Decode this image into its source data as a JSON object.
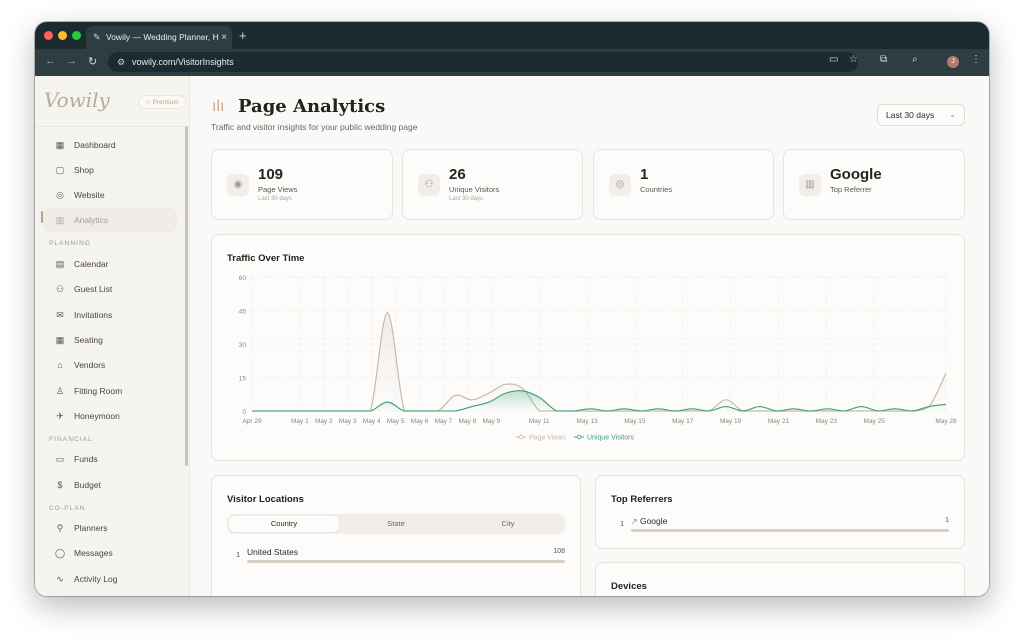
{
  "browser": {
    "tab_title": "Vowily — Wedding Planner, H",
    "tab_close": "×",
    "new_tab": "+",
    "url": "vowily.com/VisitorInsights",
    "profile_initial": "J"
  },
  "sidebar": {
    "logo": "Vowily",
    "premium": "☆ Premium",
    "items_top": [
      {
        "label": "Dashboard",
        "icon": "dashboard-icon"
      },
      {
        "label": "Shop",
        "icon": "shop-icon"
      },
      {
        "label": "Website",
        "icon": "globe-icon"
      },
      {
        "label": "Analytics",
        "icon": "bar-chart-icon"
      }
    ],
    "section_planning": "PLANNING",
    "items_planning": [
      {
        "label": "Calendar",
        "icon": "calendar-icon"
      },
      {
        "label": "Guest List",
        "icon": "guests-icon"
      },
      {
        "label": "Invitations",
        "icon": "mail-icon"
      },
      {
        "label": "Seating",
        "icon": "seating-icon"
      },
      {
        "label": "Vendors",
        "icon": "store-icon"
      },
      {
        "label": "Fitting Room",
        "icon": "dress-icon"
      },
      {
        "label": "Honeymoon",
        "icon": "plane-icon"
      }
    ],
    "section_financial": "FINANCIAL",
    "items_financial": [
      {
        "label": "Funds",
        "icon": "wallet-icon"
      },
      {
        "label": "Budget",
        "icon": "dollar-icon"
      }
    ],
    "section_coplan": "CO-PLAN",
    "items_coplan": [
      {
        "label": "Planners",
        "icon": "add-user-icon"
      },
      {
        "label": "Messages",
        "icon": "chat-icon"
      },
      {
        "label": "Activity Log",
        "icon": "activity-icon"
      }
    ]
  },
  "header": {
    "title": "Page Analytics",
    "subtitle": "Traffic and visitor insights for your public wedding page",
    "range": "Last 30 days"
  },
  "stats": [
    {
      "value": "109",
      "label": "Page Views",
      "note": "Last 30 days",
      "icon": "eye-icon"
    },
    {
      "value": "26",
      "label": "Unique Visitors",
      "note": "Last 30 days",
      "icon": "users-icon"
    },
    {
      "value": "1",
      "label": "Countries",
      "note": "",
      "icon": "globe-icon"
    },
    {
      "value": "Google",
      "label": "Top Referrer",
      "note": "",
      "icon": "bar-chart-icon"
    }
  ],
  "traffic": {
    "title": "Traffic Over Time",
    "legend_page_views": "Page Views",
    "legend_unique": "Unique Visitors"
  },
  "chart_data": {
    "type": "line",
    "title": "Traffic Over Time",
    "ylim": [
      0,
      60
    ],
    "yticks": [
      "0",
      "15",
      "30",
      "45",
      "60"
    ],
    "xtick_labels": [
      "Apr 29",
      "May 1",
      "May 2",
      "May 3",
      "May 4",
      "May 5",
      "May 6",
      "May 7",
      "May 8",
      "May 9",
      "May 11",
      "May 13",
      "May 15",
      "May 17",
      "May 19",
      "May 21",
      "May 23",
      "May 25",
      "May 28"
    ],
    "grid": true,
    "legend": "bottom-center",
    "series": [
      {
        "name": "Page Views",
        "color": "#c9b8a6",
        "values": [
          0,
          0,
          0,
          0,
          0,
          0,
          0,
          0,
          44,
          0,
          0,
          0,
          7,
          5,
          8,
          12,
          10,
          0,
          0,
          0,
          0,
          0,
          0,
          0,
          0,
          0,
          0,
          0,
          5,
          0,
          0,
          0,
          0,
          0,
          0,
          0,
          0,
          0,
          0,
          0,
          2,
          17
        ]
      },
      {
        "name": "Unique Visitors",
        "color": "#3d9e7a",
        "values": [
          0,
          0,
          0,
          0,
          0,
          0,
          0,
          0,
          4,
          0,
          0,
          0,
          0,
          2,
          4,
          8,
          9,
          6,
          0,
          0,
          1,
          0,
          1,
          0,
          1,
          0,
          1,
          0,
          2,
          0,
          2,
          0,
          1,
          0,
          1,
          0,
          2,
          0,
          1,
          0,
          2,
          3
        ]
      }
    ]
  },
  "locations": {
    "title": "Visitor Locations",
    "tabs": [
      "Country",
      "State",
      "City"
    ],
    "rows": [
      {
        "rank": "1",
        "name": "United States",
        "value": "108",
        "fraction": 1.0
      }
    ]
  },
  "referrers": {
    "title": "Top Referrers",
    "rows": [
      {
        "rank": "1",
        "name": "Google",
        "value": "1",
        "fraction": 1.0
      }
    ]
  },
  "devices": {
    "title": "Devices"
  }
}
